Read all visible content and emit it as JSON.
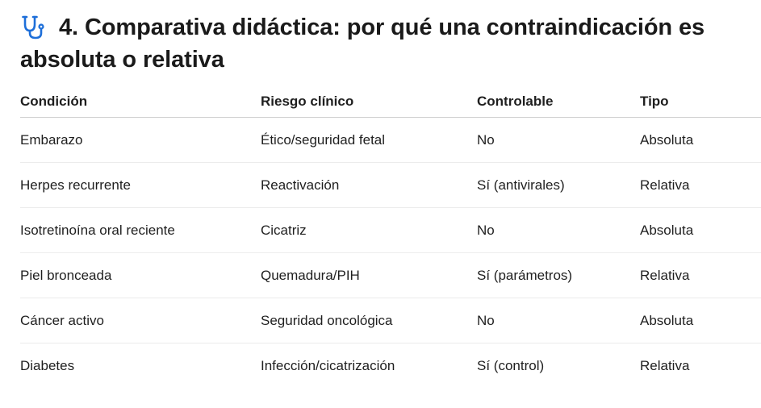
{
  "section": {
    "title": "4. Comparativa didáctica: por qué una contraindicación es absoluta o relativa",
    "icon": "stethoscope-icon",
    "icon_color": "#1e6fd9"
  },
  "table": {
    "headers": [
      "Condición",
      "Riesgo clínico",
      "Controlable",
      "Tipo"
    ],
    "rows": [
      [
        "Embarazo",
        "Ético/seguridad fetal",
        "No",
        "Absoluta"
      ],
      [
        "Herpes recurrente",
        "Reactivación",
        "Sí (antivirales)",
        "Relativa"
      ],
      [
        "Isotretinoína oral reciente",
        "Cicatriz",
        "No",
        "Absoluta"
      ],
      [
        "Piel bronceada",
        "Quemadura/PIH",
        "Sí (parámetros)",
        "Relativa"
      ],
      [
        "Cáncer activo",
        "Seguridad oncológica",
        "No",
        "Absoluta"
      ],
      [
        "Diabetes",
        "Infección/cicatrización",
        "Sí (control)",
        "Relativa"
      ]
    ]
  }
}
